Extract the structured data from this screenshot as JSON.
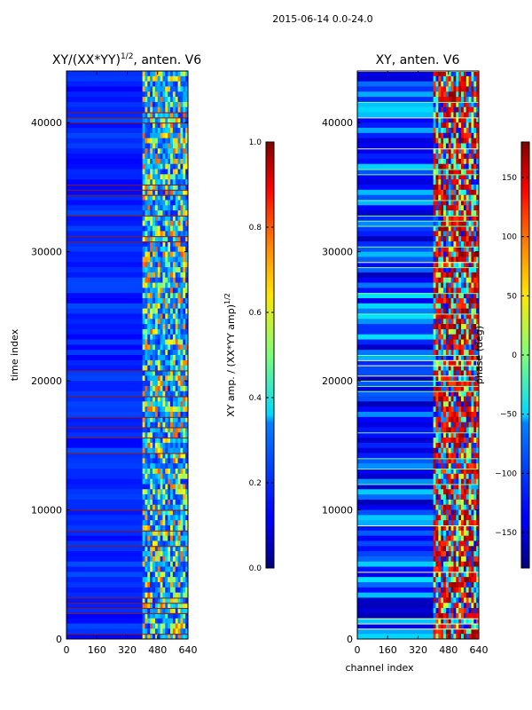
{
  "figure_title": "2015-06-14 0.0-24.0",
  "chart_data": [
    {
      "type": "heatmap",
      "title_main": "XY/(XX*YY)",
      "title_sup": "1/2",
      "title_tail": ", anten. V6",
      "xlabel": "",
      "ylabel": "time index",
      "xlim": [
        0,
        640
      ],
      "ylim": [
        0,
        44000
      ],
      "x_ticks": [
        0,
        160,
        320,
        480,
        640
      ],
      "y_ticks": [
        0,
        10000,
        20000,
        30000,
        40000
      ],
      "colorbar": {
        "label_main": "XY amp. / (XX*YY amp)",
        "label_sup": "1/2",
        "range": [
          0.0,
          1.0
        ],
        "ticks": [
          "0.0",
          "0.2",
          "0.4",
          "0.6",
          "0.8",
          "1.0"
        ],
        "tick_values": [
          0.0,
          0.2,
          0.4,
          0.6,
          0.8,
          1.0
        ],
        "colormap": "jet"
      },
      "bright_band_channels": [
        400,
        640
      ],
      "note": "mostly low amplitude (~0.1-0.2) with high-amplitude striping in channels ~400-640"
    },
    {
      "type": "heatmap",
      "title_main": "XY, anten. V6",
      "xlabel": "channel index",
      "ylabel": "",
      "xlim": [
        0,
        640
      ],
      "ylim": [
        0,
        44000
      ],
      "x_ticks": [
        0,
        160,
        320,
        480,
        640
      ],
      "y_ticks": [
        0,
        10000,
        20000,
        30000,
        40000
      ],
      "colorbar": {
        "label_main": "phase (deg)",
        "range": [
          -180,
          180
        ],
        "ticks": [
          "150",
          "100",
          "50",
          "0",
          "−50",
          "−100",
          "−150"
        ],
        "tick_values": [
          150,
          100,
          50,
          0,
          -50,
          -100,
          -150
        ],
        "colormap": "jet"
      },
      "bright_band_channels": [
        400,
        640
      ],
      "note": "phase varies with time; dense horizontal striping"
    }
  ]
}
